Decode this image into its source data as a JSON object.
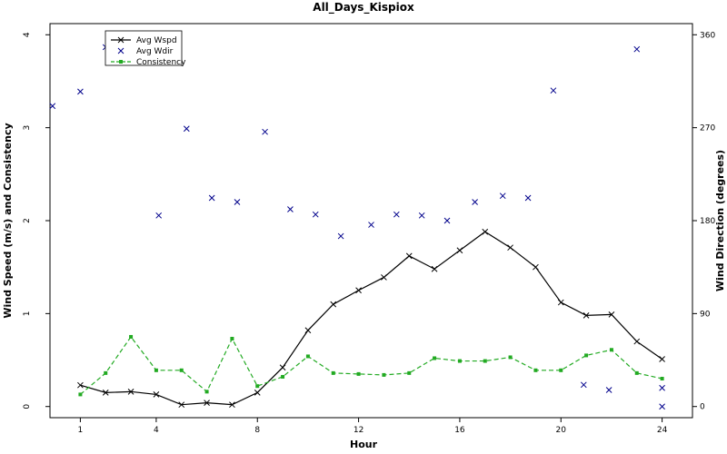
{
  "chart_data": {
    "type": "line",
    "title": "All_Days_Kispiox",
    "xlabel": "Hour",
    "ylabel_left": "Wind Speed (m/s) and Consistency",
    "ylabel_right": "Wind Direction (degrees)",
    "x_ticks": [
      "1",
      "4",
      "8",
      "12",
      "16",
      "20",
      "24"
    ],
    "x_tick_values": [
      1,
      4,
      8,
      12,
      16,
      20,
      24
    ],
    "y_left_ticks": [
      "0",
      "1",
      "2",
      "3",
      "4"
    ],
    "y_left_tick_values": [
      0,
      1,
      2,
      3,
      4
    ],
    "y_right_ticks": [
      "0",
      "90",
      "180",
      "270",
      "360"
    ],
    "y_right_tick_values": [
      0,
      90,
      180,
      270,
      360
    ],
    "xlim": [
      -0.2,
      25.2
    ],
    "ylim_left": [
      -0.12,
      4.12
    ],
    "ylim_right": [
      -10.8,
      370.8
    ],
    "grid": false,
    "legend_position": "top-left",
    "series": [
      {
        "name": "Avg Wspd",
        "axis": "left",
        "style": "solid",
        "marker": "x",
        "color": "#000000",
        "x": [
          1,
          2,
          3,
          4,
          5,
          6,
          7,
          8,
          9,
          10,
          11,
          12,
          13,
          14,
          15,
          16,
          17,
          18,
          19,
          20,
          21,
          22,
          23,
          24
        ],
        "y": [
          0.23,
          0.15,
          0.16,
          0.13,
          0.02,
          0.04,
          0.02,
          0.15,
          0.42,
          0.82,
          1.1,
          1.25,
          1.39,
          1.62,
          1.48,
          1.68,
          1.88,
          1.71,
          1.5,
          1.12,
          0.98,
          0.99,
          0.7,
          0.51
        ]
      },
      {
        "name": "Avg Wdir",
        "axis": "right",
        "style": "none",
        "marker": "x",
        "color": "#00008b",
        "x": [
          0,
          1,
          2,
          4,
          5,
          6,
          7,
          8,
          9,
          10,
          11,
          12,
          13,
          14,
          15,
          16,
          17,
          18,
          19,
          20,
          21,
          22,
          23,
          24
        ],
        "y": [
          291,
          305,
          348,
          185,
          269,
          202,
          198,
          266,
          191,
          186,
          165,
          176,
          186,
          185,
          180,
          198,
          204,
          202,
          306,
          21,
          16,
          346,
          18,
          0
        ],
        "y_plot": [
          291,
          305,
          348,
          185,
          269,
          202,
          198,
          266,
          191,
          186,
          165,
          176,
          186,
          185,
          180,
          198,
          204,
          202,
          306,
          21,
          16,
          346,
          18,
          0
        ],
        "x_plot": [
          -0.1,
          1,
          2,
          4.1,
          5.2,
          6.2,
          7.2,
          8.3,
          9.3,
          10.3,
          11.3,
          12.5,
          13.5,
          14.5,
          15.5,
          16.6,
          17.7,
          18.7,
          19.7,
          20.9,
          21.9,
          23,
          24,
          24
        ]
      },
      {
        "name": "Consistency",
        "axis": "left",
        "style": "dashed",
        "marker": "square",
        "color": "#22aa22",
        "x": [
          1,
          2,
          3,
          4,
          5,
          6,
          7,
          8,
          9,
          10,
          11,
          12,
          13,
          14,
          15,
          16,
          17,
          18,
          19,
          20,
          21,
          22,
          23,
          24
        ],
        "y": [
          0.13,
          0.36,
          0.75,
          0.39,
          0.39,
          0.16,
          0.73,
          0.22,
          0.32,
          0.54,
          0.36,
          0.35,
          0.34,
          0.36,
          0.52,
          0.49,
          0.49,
          0.53,
          0.39,
          0.39,
          0.55,
          0.61,
          0.36,
          0.3
        ]
      }
    ]
  }
}
